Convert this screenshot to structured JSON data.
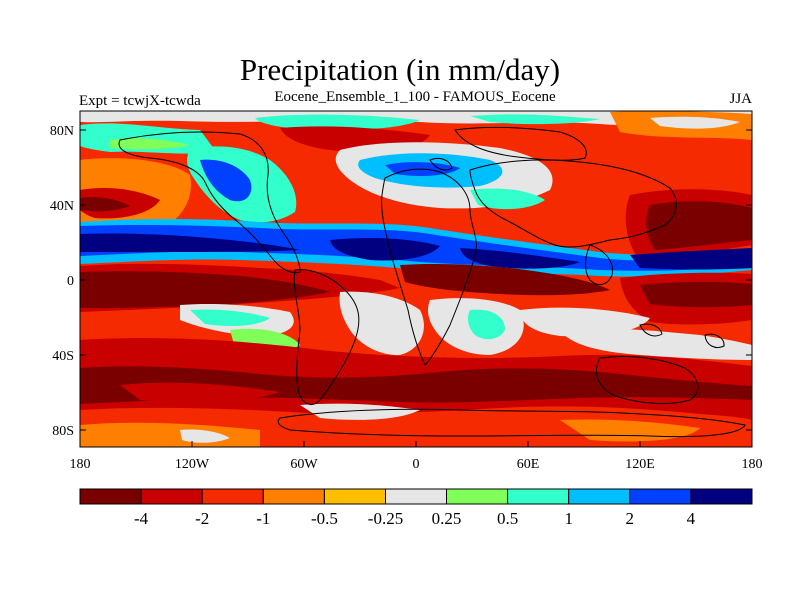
{
  "title": "Precipitation (in mm/day)",
  "left_label": "Expt = tcwjX-tcwda",
  "center_label": "Eocene_Ensemble_1_100 - FAMOUS_Eocene",
  "right_label": "JJA",
  "axes": {
    "lat_ticks": [
      "80N",
      "40N",
      "0",
      "40S",
      "80S"
    ],
    "lon_ticks": [
      "180",
      "120W",
      "60W",
      "0",
      "60E",
      "120E",
      "180"
    ]
  },
  "colorbar": {
    "colors": [
      "#7a0000",
      "#c80000",
      "#f52a00",
      "#ff7f00",
      "#ffbf00",
      "#e6e6e6",
      "#80ff59",
      "#33ffcc",
      "#00bfff",
      "#0040ff",
      "#000080"
    ],
    "labels": [
      "-4",
      "-2",
      "-1",
      "-0.5",
      "-0.25",
      "0.25",
      "0.5",
      "1",
      "2",
      "4"
    ]
  },
  "legend_colors": {
    "strong_dry": "#7a0000",
    "dry": "#c80000",
    "neutral": "#e6e6e6",
    "wet": "#00bfff",
    "strong_wet": "#000080"
  }
}
